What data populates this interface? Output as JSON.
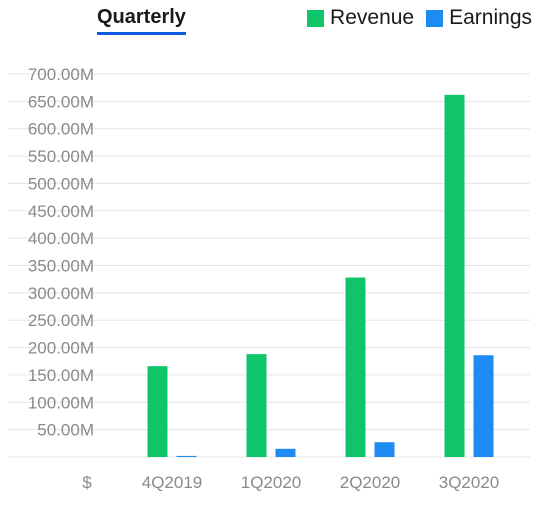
{
  "header": {
    "tab_label": "Quarterly"
  },
  "colors": {
    "revenue": "#10c46a",
    "earnings": "#1e8bf3",
    "grid": "#e5e5e5",
    "tab_underline": "#0f5ae0"
  },
  "chart_data": {
    "type": "bar",
    "title": "",
    "categories": [
      "4Q2019",
      "1Q2020",
      "2Q2020",
      "3Q2020"
    ],
    "series": [
      {
        "name": "Revenue",
        "values": [
          166,
          188,
          328,
          662
        ],
        "color": "#10c46a"
      },
      {
        "name": "Earnings",
        "values": [
          2,
          15,
          27,
          186
        ],
        "color": "#1e8bf3"
      }
    ],
    "value_unit": "M",
    "y_ticks": [
      "50.00M",
      "100.00M",
      "150.00M",
      "200.00M",
      "250.00M",
      "300.00M",
      "350.00M",
      "400.00M",
      "450.00M",
      "500.00M",
      "550.00M",
      "600.00M",
      "650.00M",
      "700.00M"
    ],
    "y_tick_values": [
      50,
      100,
      150,
      200,
      250,
      300,
      350,
      400,
      450,
      500,
      550,
      600,
      650,
      700
    ],
    "x_axis_prefix": "$",
    "ylim": [
      0,
      700
    ],
    "grid": true,
    "legend_position": "top-right"
  }
}
